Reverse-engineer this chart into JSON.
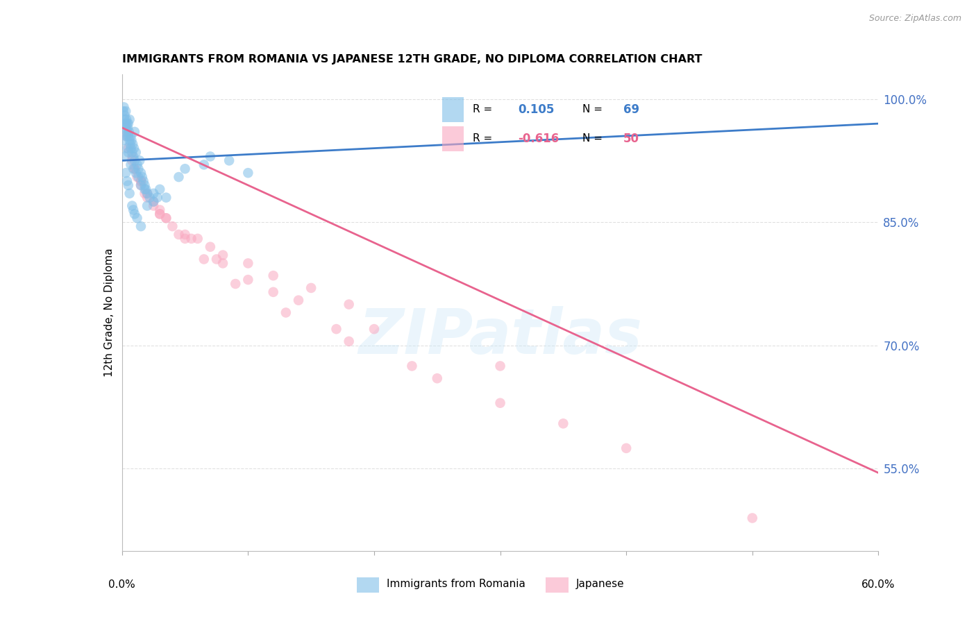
{
  "title": "IMMIGRANTS FROM ROMANIA VS JAPANESE 12TH GRADE, NO DIPLOMA CORRELATION CHART",
  "source": "Source: ZipAtlas.com",
  "ylabel": "12th Grade, No Diploma",
  "watermark": "ZIPatlas",
  "romania_r": "0.105",
  "romania_n": "69",
  "japanese_r": "-0.616",
  "japanese_n": "50",
  "romania_dot_color": "#7fbee8",
  "japanese_dot_color": "#f9a8c0",
  "romania_line_color": "#3d7cc9",
  "japanese_line_color": "#e8638e",
  "romania_scatter_x": [
    0.1,
    0.15,
    0.2,
    0.2,
    0.25,
    0.3,
    0.3,
    0.35,
    0.4,
    0.4,
    0.45,
    0.5,
    0.5,
    0.55,
    0.6,
    0.6,
    0.65,
    0.7,
    0.7,
    0.75,
    0.8,
    0.85,
    0.9,
    0.95,
    1.0,
    1.0,
    1.1,
    1.2,
    1.3,
    1.4,
    1.5,
    1.6,
    1.7,
    1.8,
    1.9,
    2.0,
    2.2,
    2.5,
    2.8,
    3.0,
    0.1,
    0.2,
    0.3,
    0.4,
    0.5,
    0.6,
    0.8,
    0.9,
    1.0,
    1.2,
    1.5,
    2.0,
    0.3,
    0.4,
    0.5,
    0.7,
    0.9,
    1.1,
    1.3,
    1.5,
    1.8,
    2.5,
    3.5,
    4.5,
    5.0,
    6.5,
    7.0,
    8.5,
    10.0
  ],
  "romania_scatter_y": [
    98.5,
    99.0,
    97.5,
    98.0,
    97.0,
    98.5,
    96.5,
    97.5,
    97.0,
    96.0,
    96.5,
    97.0,
    95.5,
    96.0,
    95.0,
    97.5,
    94.5,
    95.5,
    94.0,
    95.0,
    93.5,
    94.5,
    93.0,
    94.0,
    92.5,
    96.0,
    93.5,
    92.0,
    91.5,
    92.5,
    91.0,
    90.5,
    90.0,
    89.5,
    89.0,
    88.5,
    88.0,
    87.5,
    88.0,
    89.0,
    95.0,
    93.0,
    91.0,
    90.0,
    89.5,
    88.5,
    87.0,
    86.5,
    86.0,
    85.5,
    84.5,
    87.0,
    95.5,
    94.0,
    93.5,
    92.0,
    91.5,
    91.0,
    90.5,
    89.5,
    89.0,
    88.5,
    88.0,
    90.5,
    91.5,
    92.0,
    93.0,
    92.5,
    91.0
  ],
  "japanese_scatter_x": [
    0.3,
    0.5,
    0.8,
    1.0,
    1.2,
    1.5,
    1.8,
    2.0,
    2.5,
    3.0,
    3.5,
    4.0,
    5.0,
    6.0,
    7.0,
    8.0,
    10.0,
    12.0,
    15.0,
    18.0,
    0.8,
    1.5,
    2.5,
    3.5,
    5.0,
    7.5,
    10.0,
    14.0,
    20.0,
    30.0,
    1.0,
    2.0,
    3.0,
    4.5,
    6.5,
    9.0,
    13.0,
    18.0,
    25.0,
    35.0,
    1.5,
    3.0,
    5.5,
    8.0,
    12.0,
    17.0,
    23.0,
    30.0,
    40.0,
    50.0
  ],
  "japanese_scatter_y": [
    95.5,
    94.0,
    92.5,
    91.5,
    90.5,
    89.5,
    88.5,
    88.0,
    87.0,
    86.0,
    85.5,
    84.5,
    83.5,
    83.0,
    82.0,
    81.0,
    80.0,
    78.5,
    77.0,
    75.0,
    93.0,
    90.0,
    87.5,
    85.5,
    83.0,
    80.5,
    78.0,
    75.5,
    72.0,
    67.5,
    91.5,
    88.5,
    86.0,
    83.5,
    80.5,
    77.5,
    74.0,
    70.5,
    66.0,
    60.5,
    90.0,
    86.5,
    83.0,
    80.0,
    76.5,
    72.0,
    67.5,
    63.0,
    57.5,
    49.0
  ],
  "xmin": 0.0,
  "xmax": 60.0,
  "ymin": 45.0,
  "ymax": 103.0,
  "yticks": [
    55.0,
    70.0,
    85.0,
    100.0
  ],
  "ytick_labels": [
    "55.0%",
    "70.0%",
    "85.0%",
    "100.0%"
  ],
  "romania_line_x0": 0.0,
  "romania_line_x1": 60.0,
  "romania_line_y0": 92.5,
  "romania_line_y1": 97.0,
  "japanese_line_x0": 0.0,
  "japanese_line_x1": 60.0,
  "japanese_line_y0": 96.5,
  "japanese_line_y1": 54.5,
  "grid_color": "#e0e0e0",
  "background_color": "#ffffff",
  "dot_size": 110
}
